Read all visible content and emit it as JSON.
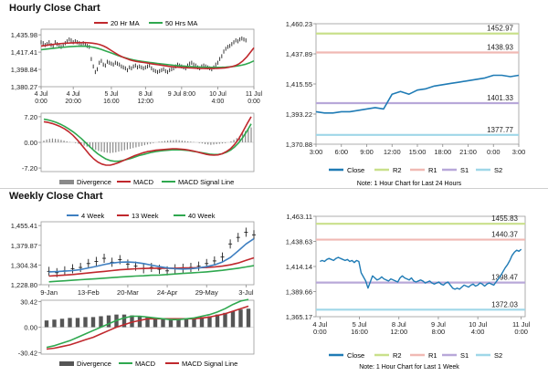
{
  "hourly": {
    "title": "Hourly Close Chart",
    "ohlc_legend": {
      "ma1": "20 Hr MA",
      "ma2": "50 Hrs MA"
    },
    "macd_legend": {
      "divergence": "Divergence",
      "macd": "MACD",
      "signal": "MACD Signal Line"
    },
    "close_legend": {
      "close": "Close",
      "r2": "R2",
      "r1": "R1",
      "s1": "S1",
      "s2": "S2"
    },
    "note": "Note: 1 Hour Chart for Last 24 Hours"
  },
  "weekly": {
    "title": "Weekly Close Chart",
    "ohlc_legend": {
      "ma1": "4 Week",
      "ma2": "13 Week",
      "ma3": "40 Week"
    },
    "macd_legend": {
      "divergence": "Divergence",
      "macd": "MACD",
      "signal": "MACD Signal Line"
    },
    "close_legend": {
      "close": "Close",
      "r2": "R2",
      "r1": "R1",
      "s1": "S1",
      "s2": "S2"
    },
    "note": "Note: 1 Hour Chart for Last 1 Week"
  },
  "colors": {
    "ma_red": "#c0282d",
    "ma_green": "#2fa84f",
    "ma_blue": "#3e7fc1",
    "close": "#1f7bb5",
    "r2": "#c9e08b",
    "r1": "#f0b9b4",
    "s1": "#b8a8d9",
    "s2": "#9fd7e8",
    "divergence": "#8a8a8a",
    "bars": "#222222"
  },
  "chart_data": [
    {
      "type": "line",
      "role": "hourly-price",
      "y_ticks": [
        "1,435.98",
        "1,417.41",
        "1,398.84",
        "1,380.27"
      ],
      "y_tick_values": [
        1435.98,
        1417.41,
        1398.84,
        1380.27
      ],
      "ylim": [
        1380.27,
        1442
      ],
      "x_ticks": [
        "4 Jul\n0:00",
        "4 Jul\n20:00",
        "5 Jul\n16:00",
        "8 Jul\n12:00",
        "9 Jul 8:00",
        "10 Jul\n4:00",
        "11 Jul\n0:00"
      ],
      "x_tick_pos": [
        0,
        16,
        35,
        52,
        70,
        88,
        106
      ],
      "x_range": [
        0,
        106
      ],
      "series": [
        {
          "name": "price",
          "values": [
            1428,
            1427,
            1425,
            1426,
            1428,
            1425,
            1423,
            1428,
            1426,
            1424,
            1423,
            1425,
            1427,
            1429,
            1431,
            1430,
            1428,
            1429,
            1428,
            1427,
            1426,
            1427,
            1425,
            1424,
            1423,
            1410,
            1402,
            1396,
            1399,
            1406,
            1408,
            1404,
            1403,
            1407,
            1406,
            1405,
            1404,
            1406,
            1405,
            1404,
            1402,
            1401,
            1400,
            1398,
            1401,
            1400,
            1402,
            1403,
            1401,
            1402,
            1401,
            1400,
            1401,
            1402,
            1403,
            1400,
            1398,
            1397,
            1396,
            1397,
            1398,
            1399,
            1397,
            1396,
            1398,
            1399,
            1400,
            1402,
            1404,
            1403,
            1402,
            1401,
            1400,
            1403,
            1405,
            1406,
            1404,
            1403,
            1401,
            1400,
            1402,
            1403,
            1402,
            1401,
            1400,
            1399,
            1401,
            1404,
            1406,
            1410,
            1413,
            1418,
            1421,
            1423,
            1424,
            1426,
            1428,
            1430,
            1429,
            1431,
            1432,
            1431,
            1430
          ]
        },
        {
          "name": "20 Hr MA",
          "values": [
            1424,
            1424.5,
            1425,
            1425.5,
            1426,
            1426.4,
            1426.8,
            1427,
            1427.2,
            1427.4,
            1427.5,
            1427.6,
            1427.6,
            1427.4,
            1427,
            1426.4,
            1425.4,
            1424,
            1422,
            1419.5,
            1417,
            1414.5,
            1412.5,
            1410.8,
            1409.4,
            1408.2,
            1407.4,
            1406.8,
            1406.2,
            1405.6,
            1405,
            1404.4,
            1403.8,
            1403.2,
            1402.6,
            1402,
            1401.6,
            1401.2,
            1401,
            1400.8,
            1400.6,
            1400.4,
            1400.2,
            1400,
            1399.9,
            1399.8,
            1399.8,
            1399.9,
            1400,
            1400.2,
            1400.5,
            1401,
            1401.8,
            1403,
            1405,
            1408,
            1412,
            1417,
            1422
          ]
        },
        {
          "name": "50 Hrs MA",
          "values": [
            1420,
            1420.5,
            1421,
            1421.5,
            1422,
            1422.4,
            1422.8,
            1423.2,
            1423.5,
            1423.7,
            1423.8,
            1423.7,
            1423.3,
            1422.6,
            1421.6,
            1420.3,
            1418.8,
            1417.2,
            1415.6,
            1414,
            1412.5,
            1411.2,
            1410,
            1409,
            1408.2,
            1407.5,
            1406.9,
            1406.3,
            1405.8,
            1405.3,
            1404.8,
            1404.3,
            1403.8,
            1403.3,
            1402.9,
            1402.5,
            1402.2,
            1401.9,
            1401.6,
            1401.4,
            1401.2,
            1401.1,
            1401,
            1401,
            1401,
            1401.1,
            1401.3,
            1401.6,
            1402,
            1402.6,
            1403.4,
            1404.5,
            1406,
            1408
          ]
        }
      ]
    },
    {
      "type": "bar+line",
      "role": "hourly-macd",
      "y_ticks": [
        "7.20",
        "0.00",
        "-7.20"
      ],
      "y_tick_values": [
        7.2,
        0,
        -7.2
      ],
      "ylim": [
        -8.2,
        8.2
      ],
      "divergence": [
        0.5,
        0.8,
        1.0,
        1.1,
        1.0,
        0.9,
        0.7,
        0.5,
        0.3,
        0.1,
        0,
        -0.2,
        -0.4,
        -0.6,
        -0.9,
        -1.2,
        -1.5,
        -1.8,
        -2.1,
        -2.4,
        -2.6,
        -2.8,
        -2.9,
        -3.0,
        -2.9,
        -2.8,
        -2.6,
        -2.4,
        -2.2,
        -2.0,
        -1.8,
        -1.6,
        -1.4,
        -1.2,
        -1.0,
        -0.8,
        -0.6,
        -0.4,
        -0.2,
        0,
        0.2,
        0.3,
        0.4,
        0.5,
        0.6,
        0.6,
        0.7,
        0.6,
        0.5,
        0.4,
        0.3,
        0.2,
        0.1,
        0,
        -0.2,
        -0.3,
        -0.5,
        -0.6,
        -0.7,
        -0.6,
        -0.5,
        -0.4,
        -0.3,
        -0.2,
        0,
        0.3,
        0.7,
        1.2,
        1.8,
        2.5,
        3.2,
        3.8,
        4.2
      ],
      "macd": [
        5.8,
        5.6,
        5.3,
        4.9,
        4.4,
        3.8,
        3.0,
        2.0,
        0.8,
        -0.6,
        -2.0,
        -3.4,
        -4.6,
        -5.5,
        -6.1,
        -6.4,
        -6.4,
        -6.1,
        -5.7,
        -5.2,
        -4.7,
        -4.2,
        -3.7,
        -3.3,
        -2.9,
        -2.6,
        -2.4,
        -2.2,
        -2.1,
        -2.0,
        -1.9,
        -1.8,
        -1.8,
        -1.9,
        -2.0,
        -2.2,
        -2.4,
        -2.7,
        -3.0,
        -3.3,
        -3.5,
        -3.6,
        -3.5,
        -3.2,
        -2.6,
        -1.8,
        -0.6,
        1.0,
        3.0,
        5.2,
        7.2
      ],
      "signal": [
        6.5,
        6.3,
        6.0,
        5.6,
        5.1,
        4.5,
        3.8,
        3.0,
        2.1,
        1.1,
        0,
        -1.1,
        -2.2,
        -3.2,
        -4.0,
        -4.7,
        -5.1,
        -5.3,
        -5.3,
        -5.1,
        -4.8,
        -4.5,
        -4.1,
        -3.7,
        -3.4,
        -3.1,
        -2.8,
        -2.6,
        -2.4,
        -2.3,
        -2.2,
        -2.1,
        -2.1,
        -2.1,
        -2.2,
        -2.3,
        -2.5,
        -2.7,
        -2.9,
        -3.1,
        -3.3,
        -3.4,
        -3.4,
        -3.2,
        -2.8,
        -2.2,
        -1.3,
        -0.1,
        1.4,
        3.2,
        5.2
      ]
    },
    {
      "type": "line",
      "role": "hourly-close",
      "y_ticks": [
        "1,460.23",
        "1,437.89",
        "1,415.55",
        "1,393.22",
        "1,370.88"
      ],
      "y_tick_values": [
        1460.23,
        1437.89,
        1415.55,
        1393.22,
        1370.88
      ],
      "ylim": [
        1370.88,
        1460.23
      ],
      "x_ticks": [
        "3:00",
        "6:00",
        "9:00",
        "12:00",
        "15:00",
        "18:00",
        "21:00",
        "0:00",
        "3:00"
      ],
      "x_range": [
        0,
        24
      ],
      "levels": [
        {
          "name": "R2",
          "label": "1452.97",
          "value": 1452.97
        },
        {
          "name": "R1",
          "label": "1438.93",
          "value": 1438.93
        },
        {
          "name": "S1",
          "label": "1401.33",
          "value": 1401.33
        },
        {
          "name": "S2",
          "label": "1377.77",
          "value": 1377.77
        }
      ],
      "series": [
        {
          "name": "Close",
          "values": [
            1395,
            1394,
            1394,
            1395,
            1395,
            1396,
            1397,
            1398,
            1397,
            1408,
            1410,
            1408,
            1411,
            1412,
            1414,
            1415,
            1416,
            1417,
            1418,
            1419,
            1420,
            1422,
            1422,
            1421,
            1422
          ]
        }
      ]
    },
    {
      "type": "line",
      "role": "weekly-price",
      "y_ticks": [
        "1,455.41",
        "1,379.87",
        "1,304.34",
        "1,228.80"
      ],
      "y_tick_values": [
        1455.41,
        1379.87,
        1304.34,
        1228.8
      ],
      "ylim": [
        1228.8,
        1470
      ],
      "x_ticks": [
        "9-Jan",
        "13-Feb",
        "20-Mar",
        "24-Apr",
        "29-May",
        "3-Jul"
      ],
      "x_tick_pos": [
        0,
        5,
        10,
        15,
        20,
        25
      ],
      "x_range": [
        -1,
        26
      ],
      "series": [
        {
          "name": "price",
          "values": [
            1280,
            1275,
            1282,
            1290,
            1295,
            1310,
            1318,
            1330,
            1315,
            1325,
            1308,
            1300,
            1290,
            1295,
            1288,
            1282,
            1290,
            1292,
            1295,
            1300,
            1310,
            1320,
            1335,
            1385,
            1410,
            1430,
            1420
          ]
        },
        {
          "name": "4 Week",
          "values": [
            1278,
            1279,
            1281,
            1283,
            1287,
            1293,
            1299,
            1306,
            1312,
            1315,
            1316,
            1314,
            1310,
            1304,
            1298,
            1293,
            1290,
            1289,
            1290,
            1293,
            1298,
            1305,
            1316,
            1333,
            1358,
            1385,
            1405
          ]
        },
        {
          "name": "13 Week",
          "values": [
            1262,
            1264,
            1266,
            1268,
            1271,
            1274,
            1277,
            1280,
            1283,
            1286,
            1288,
            1290,
            1291,
            1292,
            1292,
            1292,
            1292,
            1293,
            1293,
            1294,
            1295,
            1297,
            1300,
            1305,
            1312,
            1322,
            1332
          ]
        },
        {
          "name": "40 Week",
          "values": [
            1240,
            1242,
            1244,
            1246,
            1248,
            1250,
            1252,
            1254,
            1256,
            1258,
            1260,
            1262,
            1263,
            1265,
            1266,
            1268,
            1270,
            1272,
            1274,
            1276,
            1278,
            1281,
            1284,
            1288,
            1292,
            1297,
            1302
          ]
        }
      ]
    },
    {
      "type": "bar+line",
      "role": "weekly-macd",
      "y_ticks": [
        "30.42",
        "0.00",
        "-30.42"
      ],
      "y_tick_values": [
        30.42,
        0,
        -30.42
      ],
      "ylim": [
        -32,
        32
      ],
      "divergence": [
        8,
        9,
        10,
        11,
        11,
        12,
        12,
        13,
        14,
        15,
        15,
        14,
        13,
        12,
        11,
        10,
        9,
        9,
        10,
        11,
        12,
        13,
        15,
        17,
        19,
        21,
        22
      ],
      "macd": [
        -24,
        -22,
        -19,
        -16,
        -12,
        -8,
        -4,
        0,
        4,
        8,
        11,
        13,
        13,
        12,
        11,
        10,
        9,
        9,
        10,
        11,
        13,
        15,
        18,
        22,
        27,
        31,
        33
      ],
      "signal": [
        -26,
        -25,
        -23,
        -21,
        -18,
        -15,
        -12,
        -8,
        -4,
        0,
        3,
        6,
        8,
        10,
        10,
        10,
        10,
        10,
        10,
        10,
        11,
        12,
        14,
        16,
        19,
        22,
        25
      ]
    },
    {
      "type": "line",
      "role": "weekly-close",
      "y_ticks": [
        "1,463.11",
        "1,438.63",
        "1,414.14",
        "1,389.66",
        "1,365.17"
      ],
      "y_tick_values": [
        1463.11,
        1438.63,
        1414.14,
        1389.66,
        1365.17
      ],
      "ylim": [
        1365.17,
        1463.11
      ],
      "x_ticks": [
        "4 Jul\n0:00",
        "5 Jul\n16:00",
        "8 Jul\n12:00",
        "9 Jul\n8:00",
        "10 Jul\n4:00",
        "11 Jul\n0:00"
      ],
      "x_tick_pos": [
        0,
        20,
        40,
        60,
        80,
        102
      ],
      "x_range": [
        -2,
        104
      ],
      "levels": [
        {
          "name": "R2",
          "label": "1455.83",
          "value": 1455.83
        },
        {
          "name": "R1",
          "label": "1440.37",
          "value": 1440.37
        },
        {
          "name": "S1",
          "label": "1398.47",
          "value": 1398.47
        },
        {
          "name": "S2",
          "label": "1372.03",
          "value": 1372.03
        }
      ],
      "series": [
        {
          "name": "Close",
          "values": [
            1419,
            1420,
            1419,
            1421,
            1422,
            1421,
            1420,
            1422,
            1423,
            1422,
            1421,
            1420,
            1421,
            1419,
            1420,
            1418,
            1420,
            1419,
            1408,
            1404,
            1400,
            1393,
            1399,
            1405,
            1403,
            1401,
            1402,
            1404,
            1402,
            1401,
            1400,
            1402,
            1401,
            1400,
            1399,
            1403,
            1405,
            1403,
            1402,
            1401,
            1403,
            1400,
            1399,
            1400,
            1401,
            1400,
            1398,
            1399,
            1400,
            1398,
            1397,
            1398,
            1399,
            1397,
            1396,
            1398,
            1399,
            1396,
            1393,
            1392,
            1393,
            1392,
            1394,
            1396,
            1395,
            1394,
            1396,
            1397,
            1395,
            1396,
            1398,
            1397,
            1395,
            1397,
            1398,
            1397,
            1396,
            1399,
            1402,
            1405,
            1409,
            1413,
            1416,
            1420,
            1425,
            1428,
            1430,
            1429,
            1431
          ]
        }
      ]
    }
  ]
}
